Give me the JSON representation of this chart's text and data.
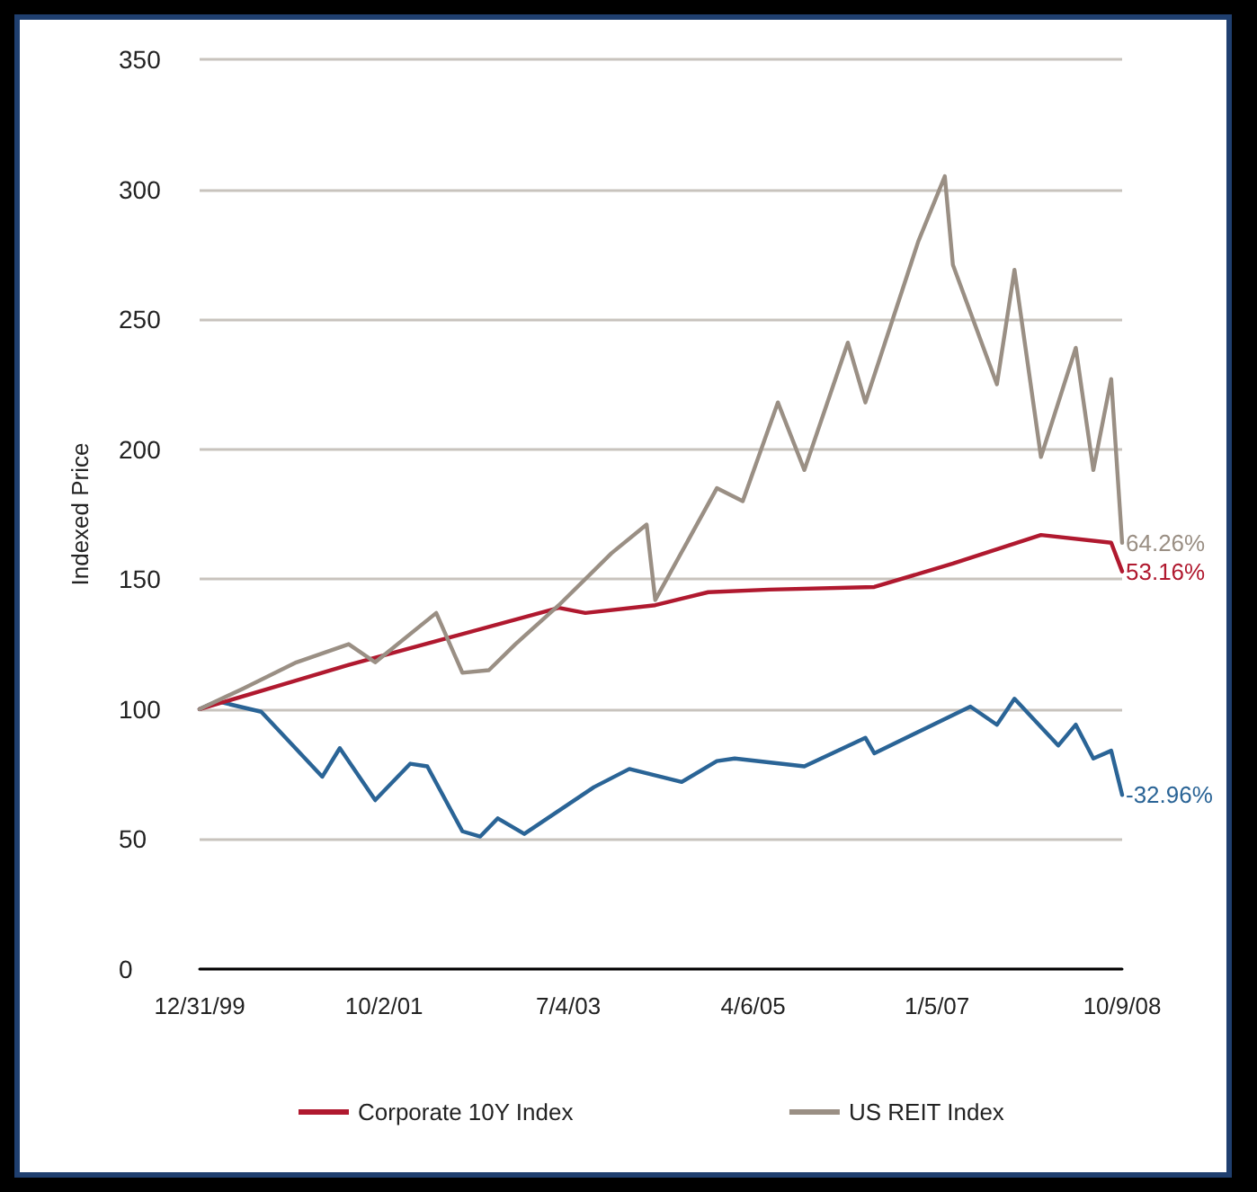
{
  "chart_data": {
    "type": "line",
    "ylabel": "Indexed Price",
    "xlim": [
      "1999-12-31",
      "2008-10-09"
    ],
    "xticks": [
      {
        "value": "1999-12-31",
        "label": "12/31/99"
      },
      {
        "value": "2001-10-02",
        "label": "10/2/01"
      },
      {
        "value": "2003-07-04",
        "label": "7/4/03"
      },
      {
        "value": "2005-04-06",
        "label": "4/6/05"
      },
      {
        "value": "2007-01-05",
        "label": "1/5/07"
      },
      {
        "value": "2008-10-09",
        "label": "10/9/08"
      }
    ],
    "ylim": [
      0,
      350
    ],
    "yticks": [
      0,
      50,
      100,
      150,
      200,
      250,
      300,
      350
    ],
    "grid": "y",
    "legend": "bottom",
    "marker": "none",
    "line_style": "solid",
    "series": [
      {
        "color": "#2a6496",
        "x": [
          "1999-12-31",
          "2000-03",
          "2000-08",
          "2001-03",
          "2001-05",
          "2001-09",
          "2002-01",
          "2002-03",
          "2002-07",
          "2002-09",
          "2002-11",
          "2003-02",
          "2003-10",
          "2004-02",
          "2004-08",
          "2004-12",
          "2005-02",
          "2005-10",
          "2006-05",
          "2006-06",
          "2007-05",
          "2007-08",
          "2007-10",
          "2008-03",
          "2008-05",
          "2008-07",
          "2008-09",
          "2008-10-09"
        ],
        "values": [
          100,
          103,
          99,
          74,
          85,
          65,
          79,
          78,
          53,
          51,
          58,
          52,
          70,
          77,
          72,
          80,
          81,
          78,
          89,
          83,
          101,
          94,
          104,
          86,
          94,
          81,
          84,
          67
        ]
      },
      {
        "name": "Corporate 10Y Index",
        "color": "#b0192f",
        "x": [
          "1999-12-31",
          "2001-06",
          "2002-06",
          "2003-06",
          "2003-09",
          "2004-05",
          "2004-11",
          "2005-06",
          "2006-06",
          "2007-03",
          "2008-01",
          "2008-09",
          "2008-10-09"
        ],
        "values": [
          100,
          117,
          128,
          139,
          137,
          140,
          145,
          146,
          147,
          156,
          167,
          164,
          153
        ]
      },
      {
        "name": "US REIT Index",
        "color": "#9a8f84",
        "x": [
          "1999-12-31",
          "2000-06",
          "2000-12",
          "2001-06",
          "2001-09",
          "2002-04",
          "2002-07",
          "2002-10",
          "2003-01",
          "2003-06",
          "2003-12",
          "2004-04",
          "2004-05",
          "2004-12",
          "2005-03",
          "2005-07",
          "2005-10",
          "2006-03",
          "2006-05",
          "2006-11",
          "2007-02",
          "2007-03",
          "2007-08",
          "2007-10",
          "2008-01",
          "2008-05",
          "2008-07",
          "2008-09",
          "2008-10-09"
        ],
        "values": [
          100,
          108,
          118,
          125,
          118,
          137,
          114,
          115,
          125,
          140,
          160,
          171,
          142,
          185,
          180,
          218,
          192,
          241,
          218,
          280,
          305,
          271,
          225,
          269,
          197,
          239,
          192,
          227,
          164
        ]
      }
    ],
    "annotations": [
      {
        "text": "-32.96%",
        "x": "2008-10-09",
        "y": 67
      },
      {
        "text": "53.16%",
        "x": "2008-10-09",
        "y": 153
      },
      {
        "text": "64.26%",
        "x": "2008-10-09",
        "y": 164
      }
    ]
  }
}
